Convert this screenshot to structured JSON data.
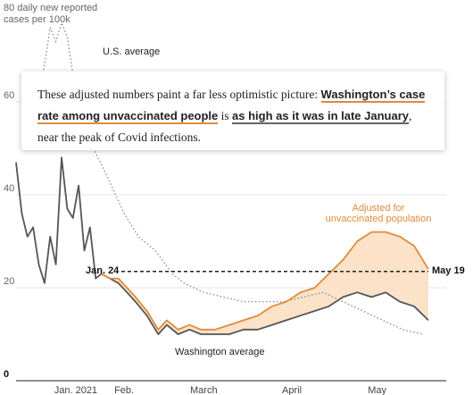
{
  "chart_data": {
    "type": "line",
    "ylabel_line1": "80 daily new reported",
    "ylabel_line2": "cases per 100k",
    "ylim": [
      0,
      80
    ],
    "yticks": [
      0,
      20,
      40,
      60
    ],
    "ytick_labels": [
      "0",
      "20",
      "40",
      "60"
    ],
    "x_tick_labels": [
      "Jan. 2021",
      "Feb.",
      "March",
      "April",
      "May"
    ],
    "x_tick_dates": [
      "2021-01-15",
      "2021-02-01",
      "2021-03-01",
      "2021-04-01",
      "2021-05-01"
    ],
    "x_range": [
      "2020-12-25",
      "2021-05-19"
    ],
    "reference_line": {
      "value": 23.5,
      "left_label": "Jan. 24",
      "right_label": "May 19"
    },
    "series": [
      {
        "name": "U.S. average",
        "style": "dotted",
        "x": [
          "2020-12-31",
          "2021-01-01",
          "2021-01-04",
          "2021-01-06",
          "2021-01-08",
          "2021-01-10",
          "2021-01-12",
          "2021-01-15",
          "2021-01-18",
          "2021-01-22",
          "2021-01-26",
          "2021-02-01",
          "2021-02-06",
          "2021-02-12",
          "2021-02-18",
          "2021-02-22",
          "2021-03-01",
          "2021-03-08",
          "2021-03-15",
          "2021-03-22",
          "2021-03-29",
          "2021-04-05",
          "2021-04-12",
          "2021-04-19",
          "2021-04-26",
          "2021-05-03",
          "2021-05-10",
          "2021-05-17"
        ],
        "values": [
          60,
          57,
          68,
          76,
          73,
          77,
          74,
          62,
          55,
          49,
          44,
          36,
          31,
          28,
          23,
          21,
          19,
          18,
          17,
          17,
          17,
          18,
          19,
          17,
          15,
          13,
          11,
          10
        ]
      },
      {
        "name": "Washington average",
        "style": "solid",
        "x": [
          "2020-12-25",
          "2020-12-27",
          "2020-12-29",
          "2020-12-31",
          "2021-01-02",
          "2021-01-04",
          "2021-01-06",
          "2021-01-08",
          "2021-01-10",
          "2021-01-12",
          "2021-01-14",
          "2021-01-16",
          "2021-01-18",
          "2021-01-20",
          "2021-01-22",
          "2021-01-24",
          "2021-01-27",
          "2021-01-30",
          "2021-02-02",
          "2021-02-05",
          "2021-02-09",
          "2021-02-13",
          "2021-02-16",
          "2021-02-20",
          "2021-02-24",
          "2021-02-28",
          "2021-03-05",
          "2021-03-10",
          "2021-03-15",
          "2021-03-20",
          "2021-03-25",
          "2021-03-30",
          "2021-04-04",
          "2021-04-09",
          "2021-04-14",
          "2021-04-19",
          "2021-04-24",
          "2021-04-29",
          "2021-05-04",
          "2021-05-09",
          "2021-05-14",
          "2021-05-19"
        ],
        "values": [
          47,
          36,
          31,
          33,
          25,
          21,
          31,
          25,
          48,
          37,
          35,
          42,
          28,
          33,
          22,
          23,
          22,
          21,
          19,
          17,
          14,
          10,
          12,
          10,
          11,
          10,
          10,
          10,
          11,
          11,
          12,
          13,
          14,
          15,
          16,
          18,
          19,
          18,
          19,
          17,
          16,
          13
        ]
      },
      {
        "name": "Adjusted for unvaccinated population",
        "style": "solid",
        "x": [
          "2021-01-24",
          "2021-01-27",
          "2021-01-30",
          "2021-02-02",
          "2021-02-05",
          "2021-02-09",
          "2021-02-13",
          "2021-02-16",
          "2021-02-20",
          "2021-02-24",
          "2021-02-28",
          "2021-03-05",
          "2021-03-10",
          "2021-03-15",
          "2021-03-20",
          "2021-03-25",
          "2021-03-30",
          "2021-04-04",
          "2021-04-09",
          "2021-04-14",
          "2021-04-19",
          "2021-04-24",
          "2021-04-29",
          "2021-05-04",
          "2021-05-09",
          "2021-05-14",
          "2021-05-19"
        ],
        "values": [
          23,
          22,
          22,
          20,
          18,
          15,
          11,
          13,
          11,
          12,
          11,
          11,
          12,
          13,
          14,
          16,
          17,
          19,
          20,
          23,
          26,
          30,
          32,
          32,
          31,
          29,
          24
        ]
      }
    ],
    "annotations": {
      "us_average": "U.S. average",
      "washington_average": "Washington average",
      "adjusted_line1": "Adjusted for",
      "adjusted_line2": "unvaccinated population"
    }
  },
  "card": {
    "text_1": "These adjusted numbers paint a far less optimistic picture: ",
    "highlight_1": "Washington’s case rate among unvaccinated people",
    "text_2": " is ",
    "highlight_2": "as high as it was in late January",
    "text_3": ", near the peak of Covid infections."
  },
  "colors": {
    "washington": "#555555",
    "adjusted": "#e08a3c",
    "shade": "#fbe2c8",
    "us_average": "#888888",
    "reference": "#222222"
  }
}
